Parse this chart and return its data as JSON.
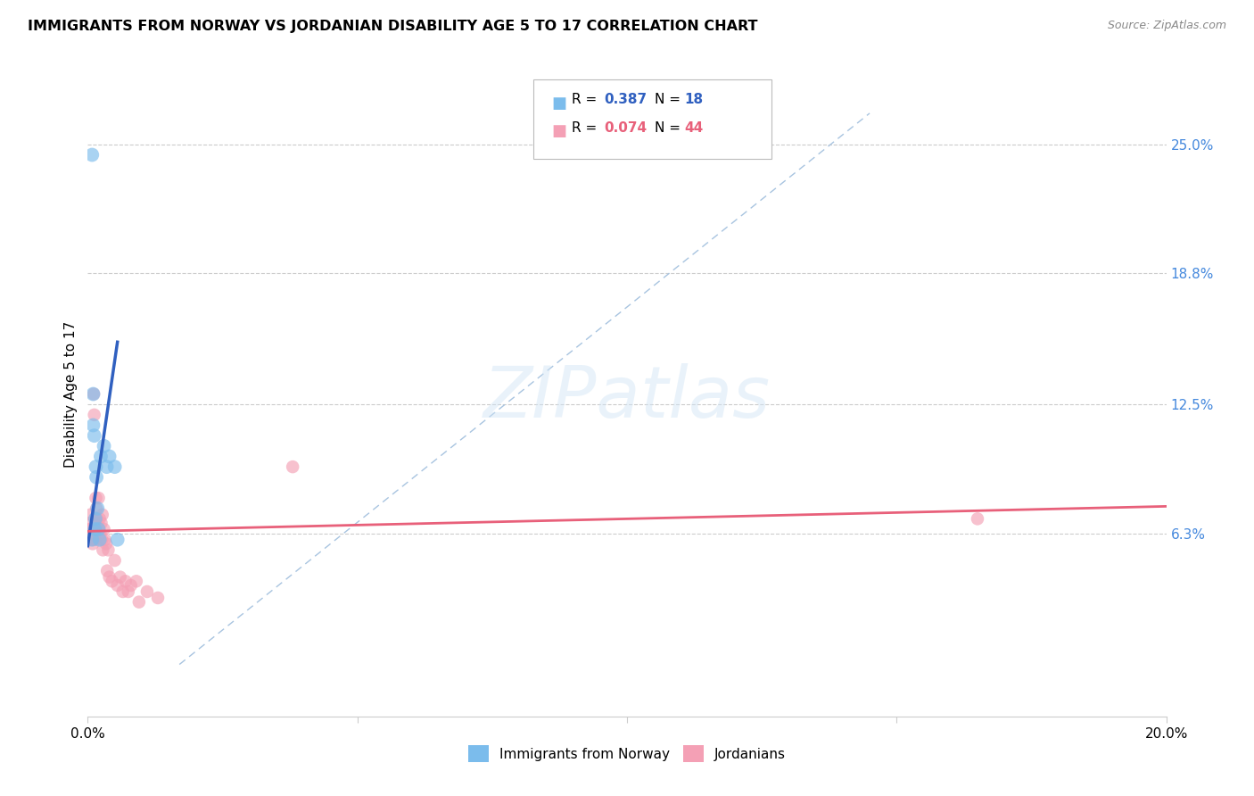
{
  "title": "IMMIGRANTS FROM NORWAY VS JORDANIAN DISABILITY AGE 5 TO 17 CORRELATION CHART",
  "source": "Source: ZipAtlas.com",
  "ylabel": "Disability Age 5 to 17",
  "xlim": [
    0.0,
    0.2
  ],
  "ylim": [
    -0.025,
    0.285
  ],
  "xticks": [
    0.0,
    0.05,
    0.1,
    0.15,
    0.2
  ],
  "xticklabels": [
    "0.0%",
    "",
    "",
    "",
    "20.0%"
  ],
  "ytick_right_labels": [
    "25.0%",
    "18.8%",
    "12.5%",
    "6.3%"
  ],
  "ytick_right_values": [
    0.25,
    0.188,
    0.125,
    0.063
  ],
  "norway_R": 0.387,
  "norway_N": 18,
  "jordan_R": 0.074,
  "jordan_N": 44,
  "norway_color": "#7BBCEC",
  "jordan_color": "#F4A0B5",
  "norway_line_color": "#3060C0",
  "jordan_line_color": "#E8607A",
  "diagonal_line_color": "#A8C4E0",
  "background_color": "#FFFFFF",
  "norway_x": [
    0.0008,
    0.0008,
    0.001,
    0.001,
    0.0012,
    0.0013,
    0.0014,
    0.0015,
    0.0016,
    0.0018,
    0.002,
    0.0022,
    0.0024,
    0.003,
    0.0035,
    0.004,
    0.005,
    0.0055
  ],
  "norway_y": [
    0.245,
    0.06,
    0.13,
    0.115,
    0.11,
    0.065,
    0.07,
    0.095,
    0.09,
    0.075,
    0.065,
    0.06,
    0.1,
    0.105,
    0.095,
    0.1,
    0.095,
    0.06
  ],
  "jordan_x": [
    0.0003,
    0.0004,
    0.0005,
    0.0006,
    0.0007,
    0.0008,
    0.0009,
    0.001,
    0.0011,
    0.0012,
    0.0013,
    0.0014,
    0.0015,
    0.0016,
    0.0017,
    0.0018,
    0.002,
    0.0021,
    0.0022,
    0.0023,
    0.0025,
    0.0026,
    0.0027,
    0.0028,
    0.003,
    0.0032,
    0.0034,
    0.0036,
    0.0038,
    0.004,
    0.0045,
    0.005,
    0.0055,
    0.006,
    0.0065,
    0.007,
    0.0075,
    0.008,
    0.009,
    0.0095,
    0.011,
    0.013,
    0.038,
    0.165
  ],
  "jordan_y": [
    0.065,
    0.068,
    0.072,
    0.065,
    0.06,
    0.063,
    0.058,
    0.06,
    0.13,
    0.12,
    0.065,
    0.06,
    0.08,
    0.075,
    0.07,
    0.068,
    0.08,
    0.065,
    0.07,
    0.063,
    0.068,
    0.06,
    0.072,
    0.055,
    0.065,
    0.06,
    0.058,
    0.045,
    0.055,
    0.042,
    0.04,
    0.05,
    0.038,
    0.042,
    0.035,
    0.04,
    0.035,
    0.038,
    0.04,
    0.03,
    0.035,
    0.032,
    0.095,
    0.07
  ],
  "norway_scatter_size": 130,
  "jordan_scatter_size": 110,
  "legend_label_norway": "Immigrants from Norway",
  "legend_label_jordan": "Jordanians",
  "norway_line_x0": 0.0,
  "norway_line_y0": 0.057,
  "norway_line_x1": 0.0055,
  "norway_line_y1": 0.155,
  "jordan_line_x0": 0.0,
  "jordan_line_y0": 0.064,
  "jordan_line_x1": 0.2,
  "jordan_line_y1": 0.076
}
